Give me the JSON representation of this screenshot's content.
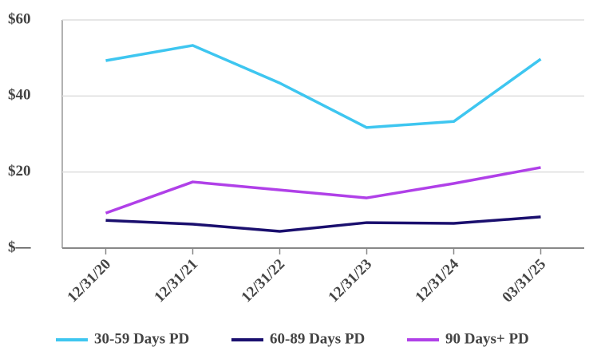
{
  "chart_data": {
    "type": "line",
    "categories": [
      "12/31/20",
      "12/31/21",
      "12/31/22",
      "12/31/23",
      "12/31/24",
      "03/31/25"
    ],
    "series": [
      {
        "name": "30-59 Days PD",
        "color": "#3ec6f0",
        "values": [
          49.3,
          53.3,
          43.4,
          31.7,
          33.3,
          49.7
        ]
      },
      {
        "name": "60-89 Days PD",
        "color": "#1a0f6e",
        "values": [
          7.3,
          6.3,
          4.4,
          6.7,
          6.5,
          8.2
        ]
      },
      {
        "name": "90 Days+ PD",
        "color": "#b040e8",
        "values": [
          9.2,
          17.4,
          15.3,
          13.2,
          17.0,
          21.2
        ]
      }
    ],
    "ylim": [
      0,
      60
    ],
    "yticks": [
      {
        "value": 0,
        "label": "$—"
      },
      {
        "value": 20,
        "label": "$20"
      },
      {
        "value": 40,
        "label": "$40"
      },
      {
        "value": 60,
        "label": "$60"
      }
    ],
    "grid": true
  }
}
